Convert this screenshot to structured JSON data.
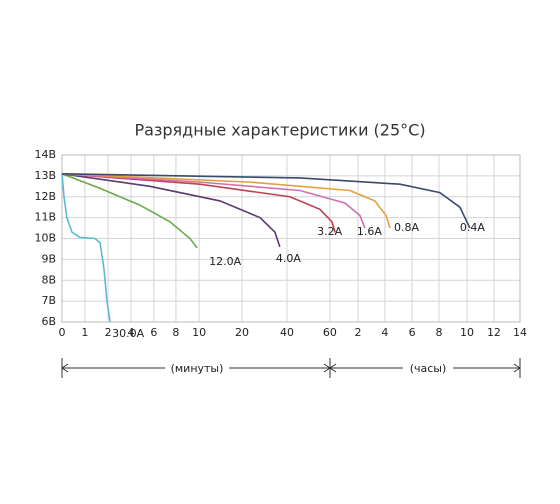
{
  "chart_data": {
    "type": "line",
    "title": "Разрядные характеристики (25°C)",
    "ylim": [
      6,
      14
    ],
    "yticks": [
      {
        "value": 6,
        "label": "6В"
      },
      {
        "value": 7,
        "label": "7В"
      },
      {
        "value": 8,
        "label": "8В"
      },
      {
        "value": 9,
        "label": "9В"
      },
      {
        "value": 10,
        "label": "10В"
      },
      {
        "value": 11,
        "label": "11В"
      },
      {
        "value": 12,
        "label": "12В"
      },
      {
        "value": 13,
        "label": "13В"
      },
      {
        "value": 14,
        "label": "14В"
      }
    ],
    "xlim": [
      0,
      16
    ],
    "xticks": [
      {
        "value": 0,
        "label": "0"
      },
      {
        "value": 0.8,
        "label": "1"
      },
      {
        "value": 1.61,
        "label": "2"
      },
      {
        "value": 2.41,
        "label": "4"
      },
      {
        "value": 3.21,
        "label": "6"
      },
      {
        "value": 3.98,
        "label": "8"
      },
      {
        "value": 4.79,
        "label": "10"
      },
      {
        "value": 6.29,
        "label": "20"
      },
      {
        "value": 7.86,
        "label": "40"
      },
      {
        "value": 9.36,
        "label": "60"
      },
      {
        "value": 10.34,
        "label": "2"
      },
      {
        "value": 11.28,
        "label": "4"
      },
      {
        "value": 12.23,
        "label": "6"
      },
      {
        "value": 13.17,
        "label": "8"
      },
      {
        "value": 14.15,
        "label": "10"
      },
      {
        "value": 15.09,
        "label": "12"
      },
      {
        "value": 16,
        "label": "14"
      }
    ],
    "grid": true,
    "x_sections": [
      "(минуты)",
      "(часы)"
    ],
    "series": [
      {
        "name": "30.0A",
        "color": "#5bb8d6",
        "x": [
          0,
          0.07,
          0.17,
          0.35,
          0.63,
          1.15,
          1.33,
          1.47,
          1.57,
          1.68
        ],
        "values": [
          13.1,
          12.0,
          11.0,
          10.3,
          10.05,
          10.0,
          9.8,
          8.5,
          7.0,
          6.0
        ]
      },
      {
        "name": "12.0A",
        "color": "#6aaa4a",
        "x": [
          0,
          1.33,
          2.72,
          3.77,
          4.47,
          4.72
        ],
        "values": [
          13.1,
          12.4,
          11.6,
          10.8,
          10.0,
          9.55
        ]
      },
      {
        "name": "4.0A",
        "color": "#5a3a70",
        "x": [
          0,
          3.07,
          5.52,
          6.92,
          7.44,
          7.61
        ],
        "values": [
          13.1,
          12.5,
          11.8,
          11.0,
          10.3,
          9.6
        ]
      },
      {
        "name": "3.2A",
        "color": "#c0404f",
        "x": [
          0,
          4.82,
          7.96,
          9.01,
          9.43,
          9.54
        ],
        "values": [
          13.1,
          12.6,
          12.0,
          11.4,
          10.8,
          10.3
        ]
      },
      {
        "name": "1.6A",
        "color": "#d070b0",
        "x": [
          0,
          4.82,
          8.31,
          9.88,
          10.41,
          10.58
        ],
        "values": [
          13.1,
          12.7,
          12.3,
          11.7,
          11.1,
          10.5
        ]
      },
      {
        "name": "0.8A",
        "color": "#e0a040",
        "x": [
          0,
          6.57,
          10.06,
          10.93,
          11.32,
          11.46
        ],
        "values": [
          13.1,
          12.7,
          12.3,
          11.8,
          11.1,
          10.5
        ]
      },
      {
        "name": "0.4A",
        "color": "#3a4a6a",
        "x": [
          0,
          8.31,
          11.81,
          13.2,
          13.9,
          14.25
        ],
        "values": [
          13.1,
          12.9,
          12.6,
          12.2,
          11.5,
          10.5
        ]
      }
    ]
  }
}
